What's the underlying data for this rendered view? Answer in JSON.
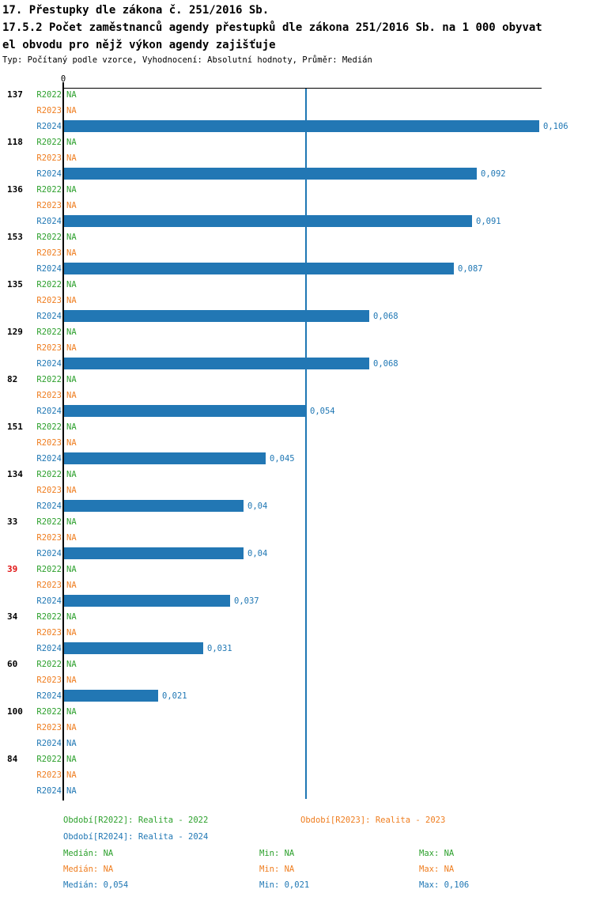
{
  "colors": {
    "green": "#2ca02c",
    "orange": "#ef7d1f",
    "blue": "#1f77b4",
    "bar_blue": "#2277b4",
    "red": "#e01212",
    "black": "#000000",
    "median_line": "#1f77b4"
  },
  "chart_data": {
    "type": "bar",
    "orientation": "horizontal-grouped",
    "title": "17. Přestupky dle zákona č. 251/2016 Sb.",
    "subtitle_lines": [
      "17.5.2 Počet zaměstnanců agendy přestupků dle zákona 251/2016 Sb. na 1 000 obyvat",
      "el obvodu pro nějž výkon agendy zajišťuje"
    ],
    "meta": "Typ: Počítaný podle vzorce, Vyhodnocení: Absolutní hodnoty, Průměr: Medián",
    "x_axis": {
      "zero_label": "0",
      "min": 0,
      "max_visible": 0.1065,
      "gridlines": false
    },
    "series_labels": [
      "R2022",
      "R2023",
      "R2024"
    ],
    "median_line": {
      "series": "R2024",
      "value": 0.054
    },
    "groups": [
      {
        "id": "137",
        "highlight": false,
        "values": [
          null,
          null,
          0.106
        ],
        "display": [
          "NA",
          "NA",
          "0,106"
        ]
      },
      {
        "id": "118",
        "highlight": false,
        "values": [
          null,
          null,
          0.092
        ],
        "display": [
          "NA",
          "NA",
          "0,092"
        ]
      },
      {
        "id": "136",
        "highlight": false,
        "values": [
          null,
          null,
          0.091
        ],
        "display": [
          "NA",
          "NA",
          "0,091"
        ]
      },
      {
        "id": "153",
        "highlight": false,
        "values": [
          null,
          null,
          0.087
        ],
        "display": [
          "NA",
          "NA",
          "0,087"
        ]
      },
      {
        "id": "135",
        "highlight": false,
        "values": [
          null,
          null,
          0.068
        ],
        "display": [
          "NA",
          "NA",
          "0,068"
        ]
      },
      {
        "id": "129",
        "highlight": false,
        "values": [
          null,
          null,
          0.068
        ],
        "display": [
          "NA",
          "NA",
          "0,068"
        ]
      },
      {
        "id": "82",
        "highlight": false,
        "values": [
          null,
          null,
          0.054
        ],
        "display": [
          "NA",
          "NA",
          "0,054"
        ]
      },
      {
        "id": "151",
        "highlight": false,
        "values": [
          null,
          null,
          0.045
        ],
        "display": [
          "NA",
          "NA",
          "0,045"
        ]
      },
      {
        "id": "134",
        "highlight": false,
        "values": [
          null,
          null,
          0.04
        ],
        "display": [
          "NA",
          "NA",
          "0,04"
        ]
      },
      {
        "id": "33",
        "highlight": false,
        "values": [
          null,
          null,
          0.04
        ],
        "display": [
          "NA",
          "NA",
          "0,04"
        ]
      },
      {
        "id": "39",
        "highlight": true,
        "values": [
          null,
          null,
          0.037
        ],
        "display": [
          "NA",
          "NA",
          "0,037"
        ]
      },
      {
        "id": "34",
        "highlight": false,
        "values": [
          null,
          null,
          0.031
        ],
        "display": [
          "NA",
          "NA",
          "0,031"
        ]
      },
      {
        "id": "60",
        "highlight": false,
        "values": [
          null,
          null,
          0.021
        ],
        "display": [
          "NA",
          "NA",
          "0,021"
        ]
      },
      {
        "id": "100",
        "highlight": false,
        "values": [
          null,
          null,
          null
        ],
        "display": [
          "NA",
          "NA",
          "NA"
        ]
      },
      {
        "id": "84",
        "highlight": false,
        "values": [
          null,
          null,
          null
        ],
        "display": [
          "NA",
          "NA",
          "NA"
        ]
      }
    ]
  },
  "legend": {
    "period_items": [
      {
        "label": "Období[R2022]: Realita - 2022",
        "color": "green",
        "row": 0,
        "col": 0
      },
      {
        "label": "Období[R2023]: Realita - 2023",
        "color": "orange",
        "row": 0,
        "col": 1
      },
      {
        "label": "Období[R2024]: Realita - 2024",
        "color": "blue",
        "row": 1,
        "col": 0
      }
    ],
    "stats_rows": [
      {
        "color": "green",
        "items": [
          "Medián: NA",
          "Min: NA",
          "Max: NA"
        ]
      },
      {
        "color": "orange",
        "items": [
          "Medián: NA",
          "Min: NA",
          "Max: NA"
        ]
      },
      {
        "color": "blue",
        "items": [
          "Medián: 0,054",
          "Min: 0,021",
          "Max: 0,106"
        ]
      }
    ]
  }
}
